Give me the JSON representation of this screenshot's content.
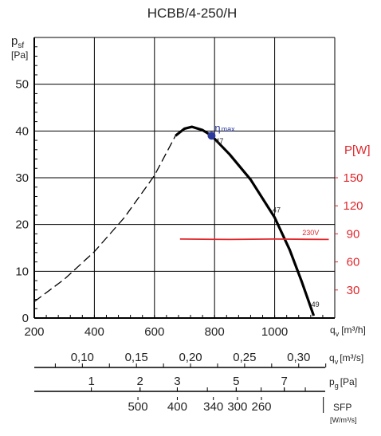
{
  "chart_data": {
    "type": "line",
    "title": "HCBB/4-250/H",
    "y_label": "psf",
    "y_label_main": "p",
    "y_label_sub": "sf",
    "y_unit": "[Pa]",
    "ylim": [
      0,
      60
    ],
    "y_ticks": [
      0,
      10,
      20,
      30,
      40,
      50
    ],
    "xlim": [
      200,
      1200
    ],
    "x_ticks": [
      200,
      400,
      600,
      800,
      1000
    ],
    "x_label_main": "q",
    "x_label_sub": "v",
    "x_unit": "[m³/h]",
    "grid": true,
    "power_axis": {
      "label": "P[W]",
      "ticks": [
        {
          "label": "150",
          "y": 30
        },
        {
          "label": "120",
          "y": 24
        },
        {
          "label": "90",
          "y": 18
        },
        {
          "label": "60",
          "y": 12
        },
        {
          "label": "30",
          "y": 6
        }
      ],
      "color": "#e0262b"
    },
    "series": [
      {
        "style": "dashed",
        "points": [
          [
            200,
            3.5
          ],
          [
            300,
            8.3
          ],
          [
            400,
            14.2
          ],
          [
            500,
            21.5
          ],
          [
            600,
            30.5
          ],
          [
            670,
            39
          ]
        ]
      },
      {
        "style": "solid",
        "points": [
          [
            670,
            39
          ],
          [
            700,
            40.5
          ],
          [
            725,
            40.9
          ],
          [
            760,
            40.2
          ],
          [
            790,
            39
          ],
          [
            850,
            35
          ],
          [
            920,
            29.6
          ],
          [
            1000,
            21.5
          ],
          [
            1050,
            14.6
          ],
          [
            1090,
            7.8
          ],
          [
            1130,
            0.5
          ]
        ]
      },
      {
        "name": "230V",
        "style": "red",
        "points": [
          [
            685,
            16.9
          ],
          [
            850,
            16.8
          ],
          [
            1000,
            16.9
          ],
          [
            1180,
            16.8
          ]
        ]
      }
    ],
    "annotations": {
      "eta_symbol": "η",
      "eta_sub": "max",
      "eta_point": [
        790,
        39
      ],
      "labels": [
        {
          "text": "47",
          "x": 803,
          "y": 37.3
        },
        {
          "text": "47",
          "x": 993,
          "y": 22.6
        },
        {
          "text": "49",
          "x": 1122,
          "y": 2.4
        },
        {
          "text": "230V",
          "x": 1092,
          "y": 17.7
        }
      ]
    },
    "secondary_scales": [
      {
        "unit_main": "q",
        "unit_sub": "v",
        "unit_rest": "[m³/s]",
        "ticks": [
          {
            "label": "0,10",
            "q": 360
          },
          {
            "label": "0,15",
            "q": 540
          },
          {
            "label": "0,20",
            "q": 720
          },
          {
            "label": "0,25",
            "q": 900
          },
          {
            "label": "0,30",
            "q": 1080
          }
        ],
        "minor": [
          270,
          450,
          630,
          810,
          990,
          1170
        ]
      },
      {
        "unit_main": "p",
        "unit_sub": "g",
        "unit_rest": "[Pa]",
        "ticks": [
          {
            "label": "1",
            "q": 390
          },
          {
            "label": "2",
            "q": 552
          },
          {
            "label": "3",
            "q": 676
          },
          {
            "label": "5",
            "q": 872
          },
          {
            "label": "7",
            "q": 1032
          }
        ],
        "minor": [
          552,
          676,
          776,
          872,
          955,
          1032,
          1102
        ]
      }
    ],
    "sfp": {
      "label": "SFP",
      "unit": "[W/m³/s]",
      "values": [
        {
          "label": "500",
          "q": 545
        },
        {
          "label": "400",
          "q": 676
        },
        {
          "label": "340",
          "q": 796
        },
        {
          "label": "300",
          "q": 876
        },
        {
          "label": "260",
          "q": 956
        }
      ],
      "minor": [
        1162
      ]
    }
  }
}
